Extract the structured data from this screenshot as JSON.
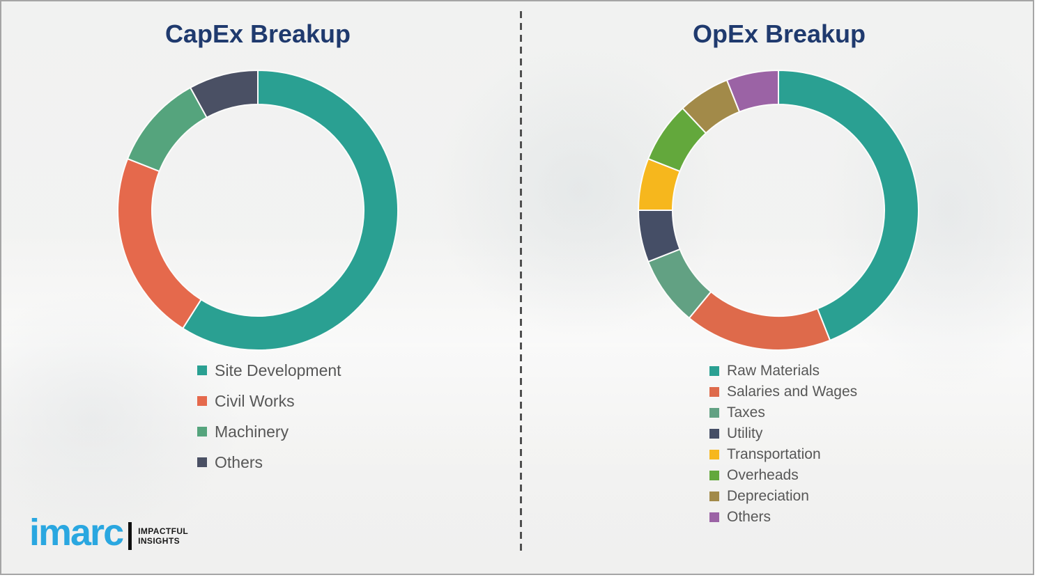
{
  "slide": {
    "background_color": "#f2f2f1",
    "border_color": "#a5a5a5",
    "divider_style": "vertical-dashed",
    "divider_color": "#4f4f4f"
  },
  "chart_data": [
    {
      "type": "pie",
      "variant": "donut",
      "title": "CapEx Breakup",
      "title_color": "#1f3a6e",
      "legend_position": "below-left",
      "values_are_estimated_percent": true,
      "segments": [
        {
          "label": "Site Development",
          "value": 59,
          "color": "#2aa092"
        },
        {
          "label": "Civil Works",
          "value": 22,
          "color": "#e5694c"
        },
        {
          "label": "Machinery",
          "value": 11,
          "color": "#55a47d"
        },
        {
          "label": "Others",
          "value": 8,
          "color": "#4a5064"
        }
      ]
    },
    {
      "type": "pie",
      "variant": "donut",
      "title": "OpEx Breakup",
      "title_color": "#1f3a6e",
      "legend_position": "below-left",
      "values_are_estimated_percent": true,
      "segments": [
        {
          "label": "Raw Materials",
          "value": 44,
          "color": "#2aa092"
        },
        {
          "label": "Salaries and Wages",
          "value": 17,
          "color": "#de6a4b"
        },
        {
          "label": "Taxes",
          "value": 8,
          "color": "#62a183"
        },
        {
          "label": "Utility",
          "value": 6,
          "color": "#454e66"
        },
        {
          "label": "Transportation",
          "value": 6,
          "color": "#f6b71d"
        },
        {
          "label": "Overheads",
          "value": 7,
          "color": "#63a83c"
        },
        {
          "label": "Depreciation",
          "value": 6,
          "color": "#a28a49"
        },
        {
          "label": "Others",
          "value": 6,
          "color": "#9b63a5"
        }
      ]
    }
  ],
  "logo": {
    "brand": "imarc",
    "brand_color": "#2aa7e0",
    "tagline": [
      "IMPACTFUL",
      "INSIGHTS"
    ]
  }
}
